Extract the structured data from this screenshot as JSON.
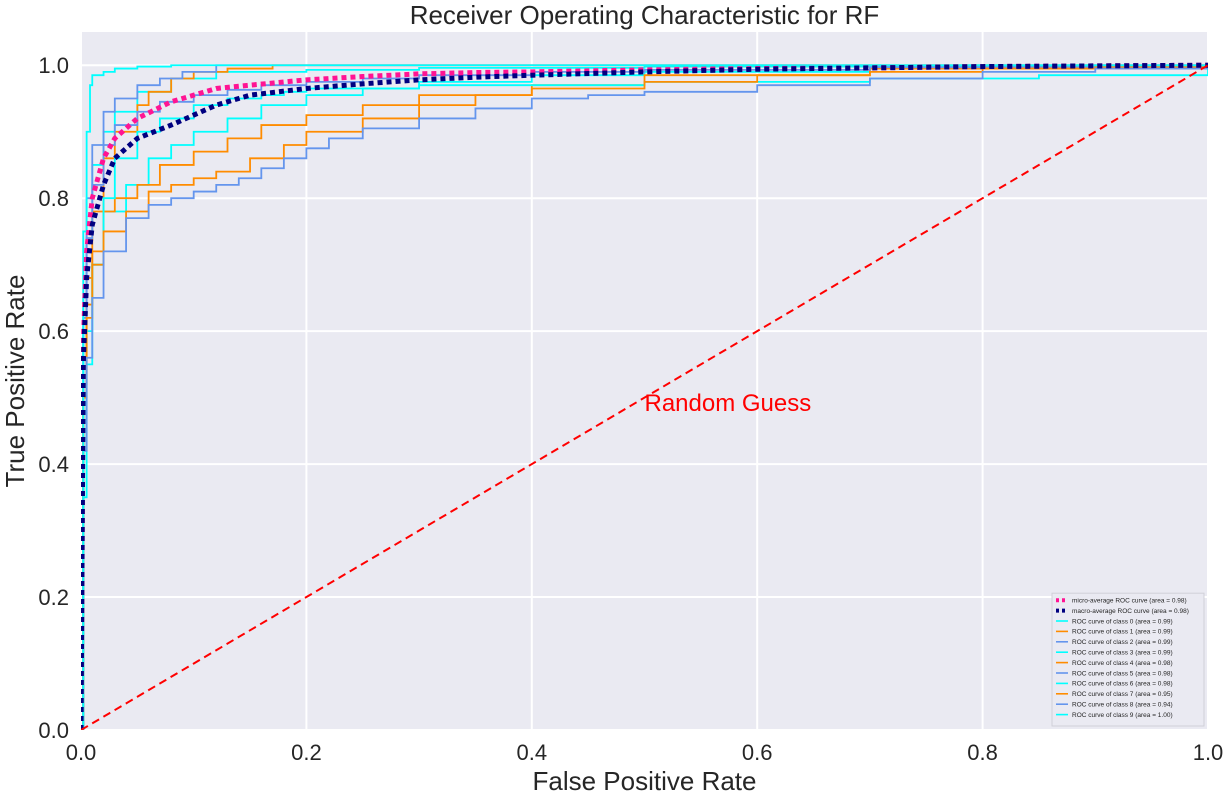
{
  "chart_data": {
    "type": "line",
    "title": "Receiver Operating Characteristic for RF",
    "xlabel": "False Positive Rate",
    "ylabel": "True Positive Rate",
    "xlim": [
      0.0,
      1.0
    ],
    "ylim": [
      0.0,
      1.05
    ],
    "xticks": [
      "0.0",
      "0.2",
      "0.4",
      "0.6",
      "0.8",
      "1.0"
    ],
    "yticks": [
      "0.0",
      "0.2",
      "0.4",
      "0.6",
      "0.8",
      "1.0"
    ],
    "grid": true,
    "background_color": "#EAEAF2",
    "grid_color": "#FFFFFF",
    "legend_position": "lower-right",
    "annotation": {
      "text": "Random Guess",
      "x": 0.5,
      "y": 0.48,
      "color": "#FF0000"
    },
    "series": [
      {
        "name": "micro-average ROC curve (area = 0.98)",
        "color": "#FF1493",
        "style": "dotted",
        "x": [
          0,
          0.002,
          0.005,
          0.01,
          0.02,
          0.03,
          0.05,
          0.08,
          0.1,
          0.12,
          0.15,
          0.2,
          0.25,
          0.3,
          0.35,
          0.4,
          0.5,
          0.6,
          0.7,
          0.8,
          0.9,
          1.0
        ],
        "y": [
          0,
          0.58,
          0.72,
          0.8,
          0.86,
          0.89,
          0.92,
          0.945,
          0.955,
          0.965,
          0.97,
          0.978,
          0.983,
          0.987,
          0.989,
          0.99,
          0.993,
          0.995,
          0.996,
          0.998,
          0.999,
          1.0
        ]
      },
      {
        "name": "macro-average ROC curve (area = 0.98)",
        "color": "#000080",
        "style": "dotted",
        "x": [
          0,
          0.002,
          0.005,
          0.01,
          0.02,
          0.03,
          0.05,
          0.08,
          0.1,
          0.12,
          0.15,
          0.2,
          0.25,
          0.3,
          0.35,
          0.4,
          0.5,
          0.6,
          0.7,
          0.8,
          0.9,
          1.0
        ],
        "y": [
          0,
          0.55,
          0.68,
          0.76,
          0.82,
          0.86,
          0.89,
          0.91,
          0.925,
          0.94,
          0.955,
          0.965,
          0.972,
          0.978,
          0.982,
          0.985,
          0.99,
          0.994,
          0.996,
          0.998,
          0.999,
          1.0
        ]
      },
      {
        "name": "ROC curve of class 0 (area = 0.99)",
        "color": "#00FFFF",
        "style": "solid",
        "x": [
          0,
          0.002,
          0.005,
          0.01,
          0.02,
          0.03,
          0.05,
          0.08,
          0.12,
          0.2,
          0.3,
          0.5,
          1.0
        ],
        "y": [
          0,
          0.6,
          0.75,
          0.85,
          0.9,
          0.93,
          0.96,
          0.98,
          0.99,
          0.993,
          0.996,
          0.998,
          1.0
        ]
      },
      {
        "name": "ROC curve of class 1 (area = 0.99)",
        "color": "#FF8C00",
        "style": "solid",
        "x": [
          0,
          0.002,
          0.005,
          0.01,
          0.02,
          0.03,
          0.05,
          0.06,
          0.08,
          0.1,
          0.13,
          0.17,
          1.0
        ],
        "y": [
          0,
          0.52,
          0.68,
          0.78,
          0.86,
          0.9,
          0.94,
          0.96,
          0.98,
          0.99,
          0.995,
          1.0,
          1.0
        ]
      },
      {
        "name": "ROC curve of class 2 (area = 0.99)",
        "color": "#6495ED",
        "style": "solid",
        "x": [
          0,
          0.002,
          0.005,
          0.01,
          0.02,
          0.03,
          0.05,
          0.07,
          0.09,
          0.12,
          1.0
        ],
        "y": [
          0,
          0.65,
          0.8,
          0.88,
          0.93,
          0.95,
          0.97,
          0.98,
          0.99,
          1.0,
          1.0
        ]
      },
      {
        "name": "ROC curve of class 3 (area = 0.99)",
        "color": "#00FFFF",
        "style": "solid",
        "x": [
          0,
          0.002,
          0.005,
          0.01,
          0.02,
          0.04,
          0.06,
          0.08,
          0.1,
          0.13,
          0.16,
          0.2,
          0.25,
          0.3,
          0.4,
          0.5,
          0.7,
          1.0
        ],
        "y": [
          0,
          0.42,
          0.6,
          0.7,
          0.78,
          0.82,
          0.86,
          0.88,
          0.9,
          0.92,
          0.94,
          0.955,
          0.965,
          0.975,
          0.985,
          0.99,
          0.995,
          1.0
        ]
      },
      {
        "name": "ROC curve of class 4 (area = 0.98)",
        "color": "#FF8C00",
        "style": "solid",
        "x": [
          0,
          0.002,
          0.005,
          0.01,
          0.02,
          0.03,
          0.05,
          0.07,
          0.1,
          0.13,
          0.16,
          0.2,
          0.25,
          0.3,
          0.4,
          0.5,
          0.7,
          1.0
        ],
        "y": [
          0,
          0.52,
          0.64,
          0.72,
          0.78,
          0.8,
          0.82,
          0.85,
          0.87,
          0.89,
          0.91,
          0.925,
          0.94,
          0.955,
          0.97,
          0.985,
          0.995,
          1.0
        ]
      },
      {
        "name": "ROC curve of class 5 (area = 0.98)",
        "color": "#6495ED",
        "style": "solid",
        "x": [
          0,
          0.002,
          0.005,
          0.01,
          0.02,
          0.03,
          0.05,
          0.07,
          0.1,
          0.13,
          0.16,
          0.2,
          0.25,
          0.3,
          0.4,
          0.5,
          0.7,
          1.0
        ],
        "y": [
          0,
          0.62,
          0.74,
          0.82,
          0.88,
          0.91,
          0.93,
          0.945,
          0.955,
          0.963,
          0.97,
          0.975,
          0.98,
          0.985,
          0.99,
          0.993,
          0.997,
          1.0
        ]
      },
      {
        "name": "ROC curve of class 6 (area = 0.98)",
        "color": "#00FFFF",
        "style": "solid",
        "x": [
          0,
          0.002,
          0.005,
          0.01,
          0.02,
          0.03,
          0.05,
          0.07,
          0.1,
          0.13,
          0.16,
          0.18,
          0.2,
          0.3,
          0.5,
          0.7,
          0.85,
          1.0
        ],
        "y": [
          0,
          0.35,
          0.55,
          0.7,
          0.8,
          0.86,
          0.9,
          0.92,
          0.94,
          0.95,
          0.955,
          0.96,
          0.965,
          0.97,
          0.975,
          0.98,
          0.985,
          1.0
        ]
      },
      {
        "name": "ROC curve of class 7 (area = 0.95)",
        "color": "#FF8C00",
        "style": "solid",
        "x": [
          0,
          0.002,
          0.005,
          0.01,
          0.02,
          0.04,
          0.06,
          0.08,
          0.1,
          0.12,
          0.15,
          0.18,
          0.2,
          0.25,
          0.3,
          0.35,
          0.4,
          0.5,
          0.6,
          0.7,
          0.8,
          0.9,
          1.0
        ],
        "y": [
          0,
          0.5,
          0.62,
          0.7,
          0.75,
          0.78,
          0.81,
          0.82,
          0.83,
          0.84,
          0.86,
          0.88,
          0.9,
          0.92,
          0.94,
          0.955,
          0.965,
          0.975,
          0.985,
          0.99,
          0.995,
          0.997,
          1.0
        ]
      },
      {
        "name": "ROC curve of class 8 (area = 0.94)",
        "color": "#6495ED",
        "style": "solid",
        "x": [
          0,
          0.002,
          0.005,
          0.01,
          0.02,
          0.04,
          0.06,
          0.08,
          0.1,
          0.12,
          0.14,
          0.16,
          0.18,
          0.2,
          0.22,
          0.25,
          0.3,
          0.35,
          0.4,
          0.45,
          0.5,
          0.6,
          0.7,
          0.8,
          0.9,
          1.0
        ],
        "y": [
          0,
          0.42,
          0.56,
          0.65,
          0.72,
          0.77,
          0.79,
          0.8,
          0.81,
          0.82,
          0.83,
          0.845,
          0.86,
          0.875,
          0.89,
          0.905,
          0.92,
          0.935,
          0.95,
          0.955,
          0.96,
          0.97,
          0.98,
          0.99,
          0.995,
          1.0
        ]
      },
      {
        "name": "ROC curve of class 9 (area = 1.00)",
        "color": "#00FFFF",
        "style": "solid",
        "x": [
          0,
          0.002,
          0.005,
          0.008,
          0.01,
          0.02,
          0.03,
          0.05,
          0.08,
          1.0
        ],
        "y": [
          0,
          0.75,
          0.9,
          0.97,
          0.985,
          0.99,
          0.995,
          0.998,
          1.0,
          1.0
        ]
      },
      {
        "name": "",
        "color": "#FF0000",
        "style": "dashed",
        "x": [
          0,
          1
        ],
        "y": [
          0,
          1
        ]
      }
    ]
  }
}
